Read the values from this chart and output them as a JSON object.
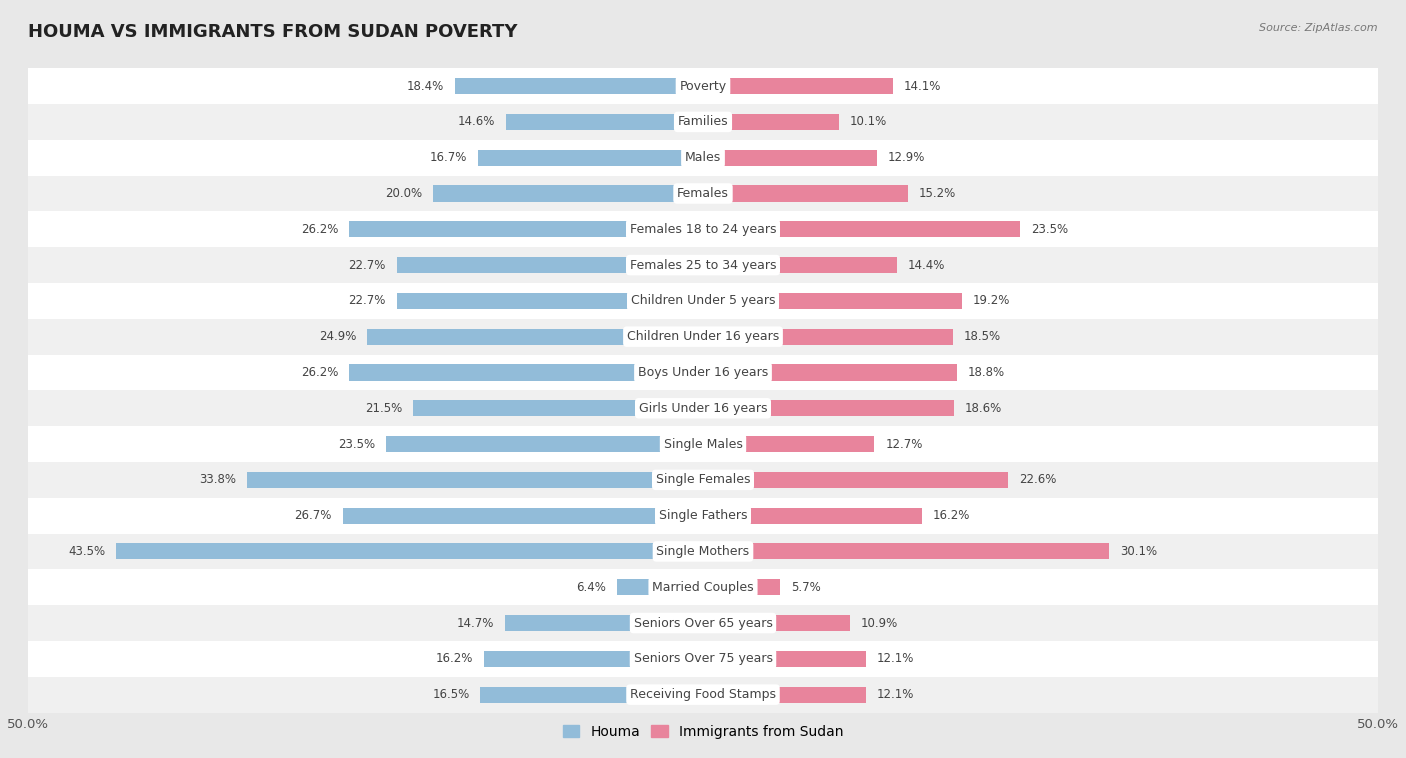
{
  "title": "HOUMA VS IMMIGRANTS FROM SUDAN POVERTY",
  "source": "Source: ZipAtlas.com",
  "categories": [
    "Poverty",
    "Families",
    "Males",
    "Females",
    "Females 18 to 24 years",
    "Females 25 to 34 years",
    "Children Under 5 years",
    "Children Under 16 years",
    "Boys Under 16 years",
    "Girls Under 16 years",
    "Single Males",
    "Single Females",
    "Single Fathers",
    "Single Mothers",
    "Married Couples",
    "Seniors Over 65 years",
    "Seniors Over 75 years",
    "Receiving Food Stamps"
  ],
  "houma_values": [
    18.4,
    14.6,
    16.7,
    20.0,
    26.2,
    22.7,
    22.7,
    24.9,
    26.2,
    21.5,
    23.5,
    33.8,
    26.7,
    43.5,
    6.4,
    14.7,
    16.2,
    16.5
  ],
  "sudan_values": [
    14.1,
    10.1,
    12.9,
    15.2,
    23.5,
    14.4,
    19.2,
    18.5,
    18.8,
    18.6,
    12.7,
    22.6,
    16.2,
    30.1,
    5.7,
    10.9,
    12.1,
    12.1
  ],
  "houma_color": "#92bcd9",
  "sudan_color": "#e8849c",
  "houma_label": "Houma",
  "sudan_label": "Immigrants from Sudan",
  "axis_max": 50.0,
  "background_color": "#e8e8e8",
  "row_color_even": "#ffffff",
  "row_color_odd": "#f0f0f0",
  "title_fontsize": 13,
  "label_fontsize": 9,
  "value_fontsize": 8.5,
  "legend_fontsize": 10
}
